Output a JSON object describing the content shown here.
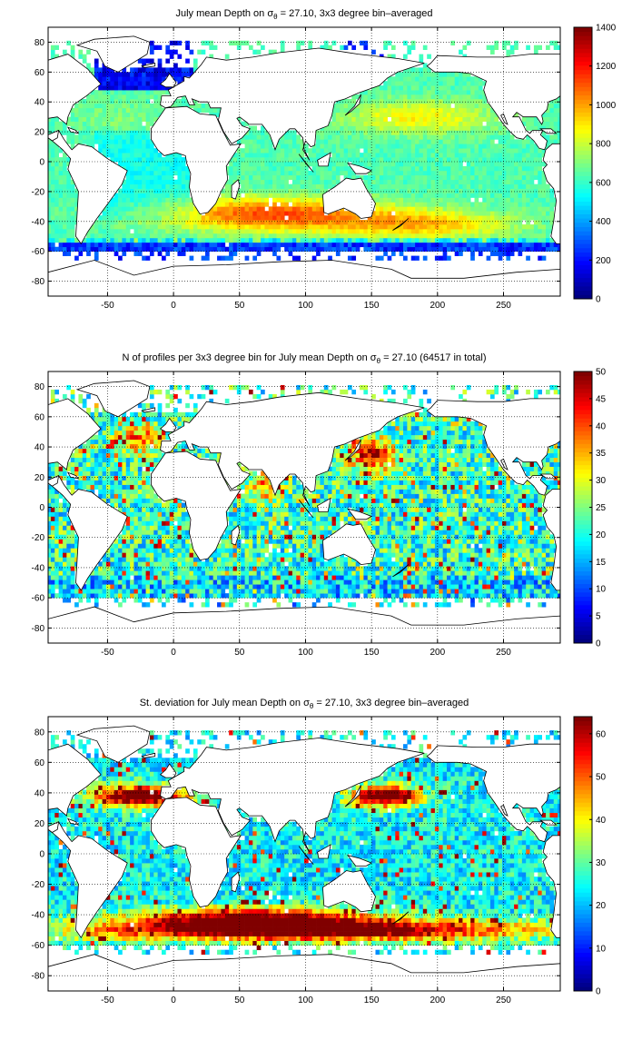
{
  "colors": {
    "jet": [
      "#00008f",
      "#0000ff",
      "#00ffff",
      "#ffff00",
      "#ff0000",
      "#800000"
    ],
    "land": "#ffffff",
    "coast": "#000000"
  },
  "chart_data": [
    {
      "type": "heatmap",
      "title": "July mean Depth on σ",
      "title_sub": "θ",
      "title_rest": " = 27.10, 3x3 degree bin–averaged",
      "xlim": [
        -95,
        293
      ],
      "ylim": [
        -90,
        90
      ],
      "xticks": [
        "-50",
        "0",
        "50",
        "100",
        "150",
        "200",
        "250"
      ],
      "xtick_values": [
        -50,
        0,
        50,
        100,
        150,
        200,
        250
      ],
      "yticks": [
        "80",
        "60",
        "40",
        "20",
        "0",
        "-20",
        "-40",
        "-60",
        "-80"
      ],
      "ytick_values": [
        80,
        60,
        40,
        20,
        0,
        -20,
        -40,
        -60,
        -80
      ],
      "grid": true,
      "colorbar": {
        "min": 0,
        "max": 1400,
        "ticks": [
          "1400",
          "1200",
          "1000",
          "800",
          "600",
          "400",
          "200",
          "0"
        ],
        "tick_values": [
          1400,
          1200,
          1000,
          800,
          600,
          400,
          200,
          0
        ]
      },
      "field": "depth"
    },
    {
      "type": "heatmap",
      "title": "N of profiles per 3x3 degree bin for July mean Depth on σ",
      "title_sub": "θ",
      "title_rest": " = 27.10 (64517 in total)",
      "xlim": [
        -95,
        293
      ],
      "ylim": [
        -90,
        90
      ],
      "xticks": [
        "-50",
        "0",
        "50",
        "100",
        "150",
        "200",
        "250"
      ],
      "xtick_values": [
        -50,
        0,
        50,
        100,
        150,
        200,
        250
      ],
      "yticks": [
        "80",
        "60",
        "40",
        "20",
        "0",
        "-20",
        "-40",
        "-60",
        "-80"
      ],
      "ytick_values": [
        80,
        60,
        40,
        20,
        0,
        -20,
        -40,
        -60,
        -80
      ],
      "grid": true,
      "colorbar": {
        "min": 0,
        "max": 50,
        "ticks": [
          "50",
          "45",
          "40",
          "35",
          "30",
          "25",
          "20",
          "15",
          "10",
          "5",
          "0"
        ],
        "tick_values": [
          50,
          45,
          40,
          35,
          30,
          25,
          20,
          15,
          10,
          5,
          0
        ]
      },
      "field": "count"
    },
    {
      "type": "heatmap",
      "title": "St. deviation for July mean Depth on σ",
      "title_sub": "θ",
      "title_rest": " = 27.10, 3x3 degree bin–averaged",
      "xlim": [
        -95,
        293
      ],
      "ylim": [
        -90,
        90
      ],
      "xticks": [
        "-50",
        "0",
        "50",
        "100",
        "150",
        "200",
        "250"
      ],
      "xtick_values": [
        -50,
        0,
        50,
        100,
        150,
        200,
        250
      ],
      "yticks": [
        "80",
        "60",
        "40",
        "20",
        "0",
        "-20",
        "-40",
        "-60",
        "-80"
      ],
      "ytick_values": [
        80,
        60,
        40,
        20,
        0,
        -20,
        -40,
        -60,
        -80
      ],
      "grid": true,
      "colorbar": {
        "min": 0,
        "max": 64,
        "ticks": [
          "60",
          "50",
          "40",
          "30",
          "20",
          "10",
          "0"
        ],
        "tick_values": [
          60,
          50,
          40,
          30,
          20,
          10,
          0
        ]
      },
      "field": "std"
    }
  ]
}
